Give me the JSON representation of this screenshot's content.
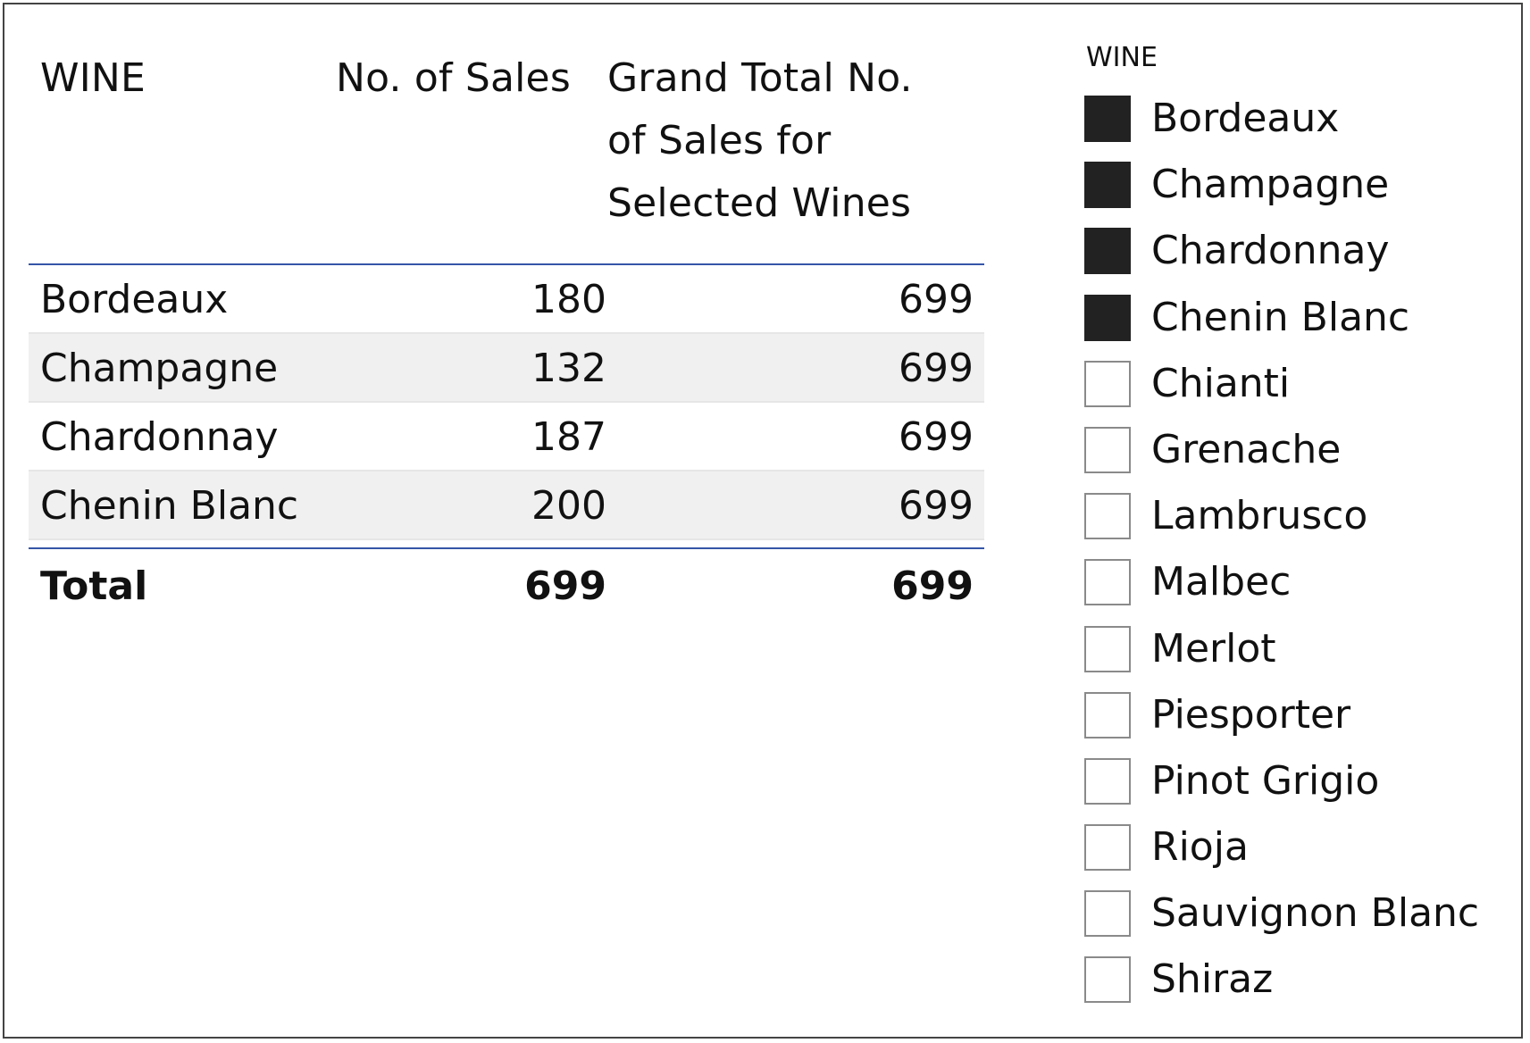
{
  "table": {
    "headers": {
      "wine": "WINE",
      "sales": "No. of Sales",
      "grand_total": "Grand Total No.\nof Sales for\nSelected Wines"
    },
    "rows": [
      {
        "wine": "Bordeaux",
        "sales": "180",
        "grand_total": "699"
      },
      {
        "wine": "Champagne",
        "sales": "132",
        "grand_total": "699"
      },
      {
        "wine": "Chardonnay",
        "sales": "187",
        "grand_total": "699"
      },
      {
        "wine": "Chenin Blanc",
        "sales": "200",
        "grand_total": "699"
      }
    ],
    "total": {
      "label": "Total",
      "sales": "699",
      "grand_total": "699"
    }
  },
  "slicer": {
    "title": "WINE",
    "items": [
      {
        "label": "Bordeaux",
        "checked": true
      },
      {
        "label": "Champagne",
        "checked": true
      },
      {
        "label": "Chardonnay",
        "checked": true
      },
      {
        "label": "Chenin Blanc",
        "checked": true
      },
      {
        "label": "Chianti",
        "checked": false
      },
      {
        "label": "Grenache",
        "checked": false
      },
      {
        "label": "Lambrusco",
        "checked": false
      },
      {
        "label": "Malbec",
        "checked": false
      },
      {
        "label": "Merlot",
        "checked": false
      },
      {
        "label": "Piesporter",
        "checked": false
      },
      {
        "label": "Pinot Grigio",
        "checked": false
      },
      {
        "label": "Rioja",
        "checked": false
      },
      {
        "label": "Sauvignon Blanc",
        "checked": false
      },
      {
        "label": "Shiraz",
        "checked": false
      }
    ]
  },
  "colors": {
    "accent_line": "#3555a8",
    "checked_fill": "#222222",
    "alt_row": "#f0f0f0"
  }
}
